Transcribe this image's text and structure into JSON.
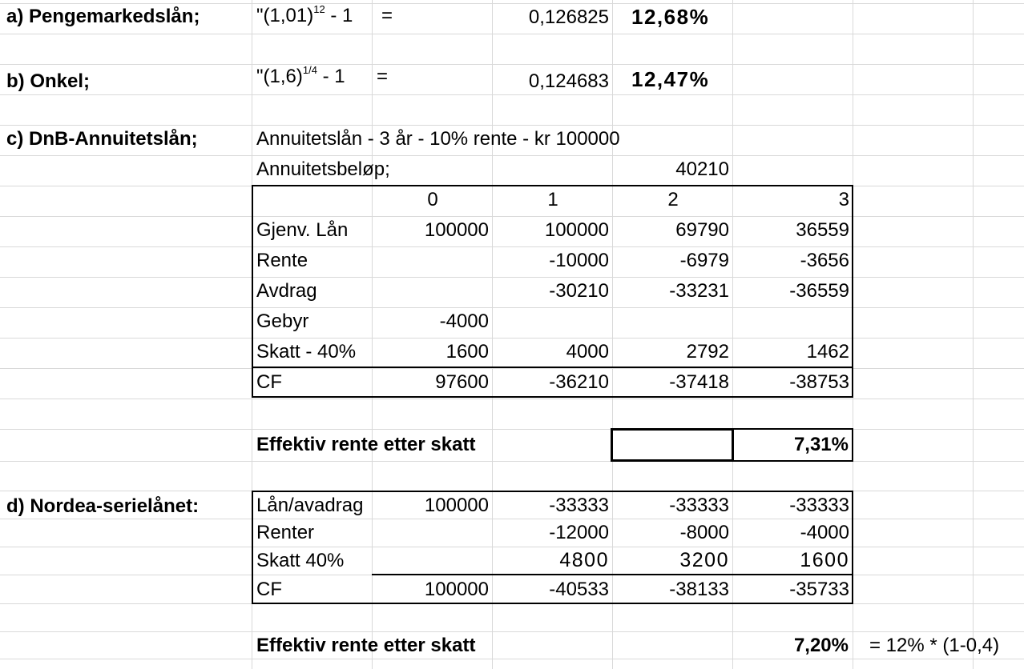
{
  "a": {
    "label": "a)  Pengemarkedslån;",
    "formula_pre": "\"(1,01)",
    "formula_exp": "12",
    "formula_post": " - 1",
    "equals": "=",
    "value": "0,126825",
    "percent": "12,68%"
  },
  "b": {
    "label": "b)  Onkel;",
    "formula_pre": "\"(1,6)",
    "formula_exp": "1/4",
    "formula_post": " - 1",
    "equals": "=",
    "value": "0,124683",
    "percent": "12,47%"
  },
  "c": {
    "label": "c)   DnB-Annuitetslån;",
    "description": "Annuitetslån - 3 år - 10% rente - kr 100000",
    "annuity_label": "Annuitetsbeløp;",
    "annuity_value": "40210",
    "periods": [
      "0",
      "1",
      "2",
      "3"
    ],
    "rows": [
      {
        "label": "Gjenv. Lån",
        "values": [
          "100000",
          "100000",
          "69790",
          "36559"
        ]
      },
      {
        "label": "Rente",
        "values": [
          "",
          "-10000",
          "-6979",
          "-3656"
        ]
      },
      {
        "label": "Avdrag",
        "values": [
          "",
          "-30210",
          "-33231",
          "-36559"
        ]
      },
      {
        "label": "Gebyr",
        "values": [
          "-4000",
          "",
          "",
          ""
        ]
      },
      {
        "label": "Skatt - 40%",
        "values": [
          "1600",
          "4000",
          "2792",
          "1462"
        ]
      },
      {
        "label": "CF",
        "values": [
          "97600",
          "-36210",
          "-37418",
          "-38753"
        ]
      }
    ],
    "effective_label": "Effektiv rente etter skatt",
    "effective_value": "7,31%"
  },
  "d": {
    "label": "d)  Nordea-serielånet:",
    "rows": [
      {
        "label": "Lån/avadrag",
        "values": [
          "100000",
          "-33333",
          "-33333",
          "-33333"
        ]
      },
      {
        "label": "Renter",
        "values": [
          "",
          "-12000",
          "-8000",
          "-4000"
        ]
      },
      {
        "label": "Skatt 40%",
        "values": [
          "",
          "4800",
          "3200",
          "1600"
        ]
      },
      {
        "label": "CF",
        "values": [
          "100000",
          "-40533",
          "-38133",
          "-35733"
        ]
      }
    ],
    "effective_label": "Effektiv rente etter skatt",
    "effective_value": "7,20%",
    "note": "= 12% * (1-0,4)"
  }
}
